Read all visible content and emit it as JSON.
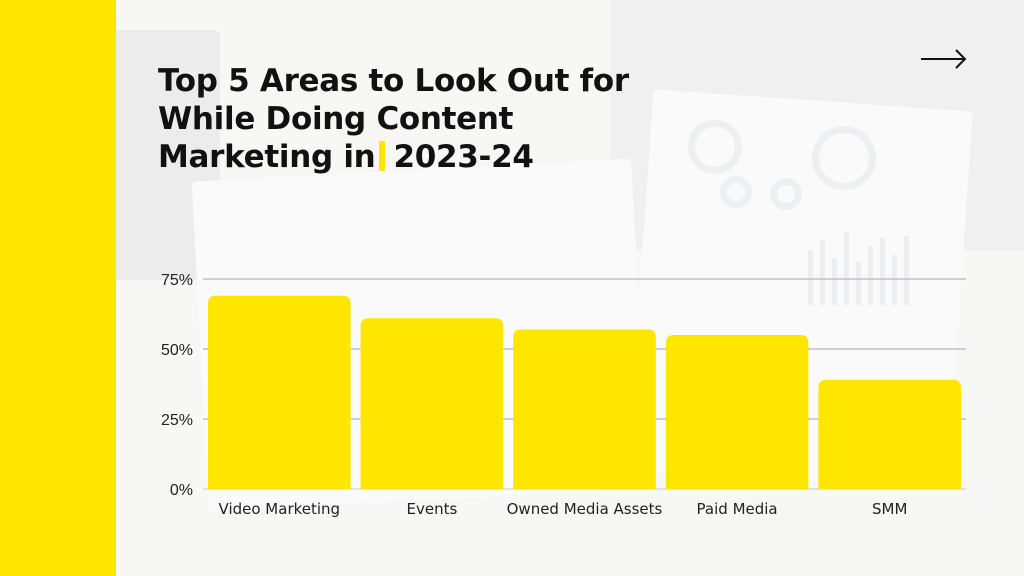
{
  "slide": {
    "title_part1": "Top 5 Areas to Look Out for While Doing Content Marketing in",
    "title_part2": "2023-24",
    "accent_color": "#ffe600",
    "next_icon": "arrow-right-icon"
  },
  "chart_data": {
    "type": "bar",
    "categories": [
      "Video Marketing",
      "Events",
      "Owned Media Assets",
      "Paid Media",
      "SMM"
    ],
    "values": [
      69,
      61,
      57,
      55,
      39
    ],
    "unit": "%",
    "ylim": [
      0,
      75
    ],
    "yticks": [
      0,
      25,
      50,
      75
    ],
    "ytick_labels": [
      "0%",
      "25%",
      "50%",
      "75%"
    ],
    "grid": true,
    "bar_color": "#ffe600"
  }
}
